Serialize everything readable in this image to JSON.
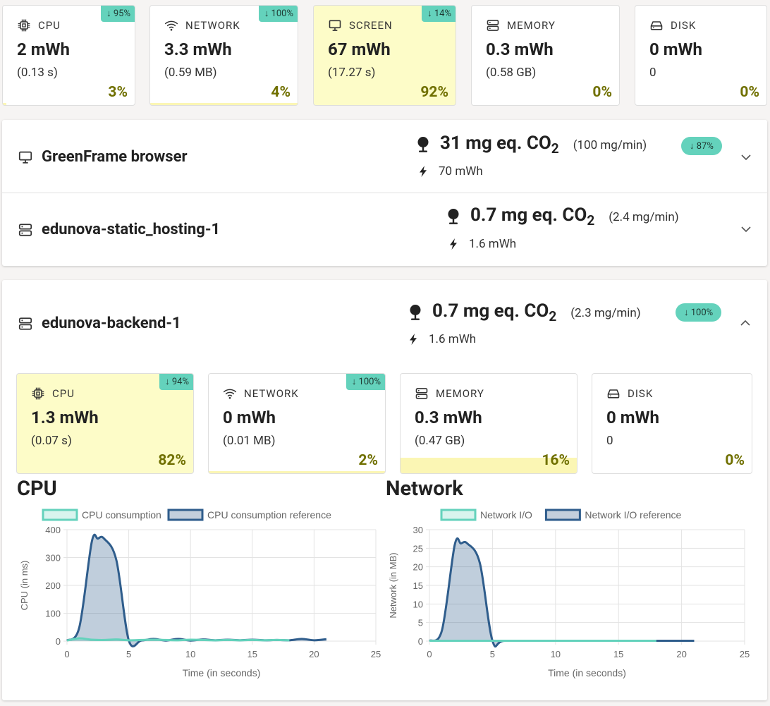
{
  "top_tiles": [
    {
      "icon": "cpu-icon",
      "name": "CPU",
      "value": "2 mWh",
      "sub": "(0.13 s)",
      "pct": "3%",
      "badge": "↓ 95%"
    },
    {
      "icon": "wifi-icon",
      "name": "NETWORK",
      "value": "3.3 mWh",
      "sub": "(0.59 MB)",
      "pct": "4%",
      "badge": "↓ 100%"
    },
    {
      "icon": "monitor-icon",
      "name": "SCREEN",
      "value": "67 mWh",
      "sub": "(17.27 s)",
      "pct": "92%",
      "badge": "↓ 14%"
    },
    {
      "icon": "memory-icon",
      "name": "MEMORY",
      "value": "0.3 mWh",
      "sub": "(0.58 GB)",
      "pct": "0%"
    },
    {
      "icon": "disk-icon",
      "name": "DISK",
      "value": "0 mWh",
      "sub": "0",
      "pct": "0%"
    }
  ],
  "containers": [
    {
      "name": "GreenFrame browser",
      "co2": "31 mg eq. CO",
      "co2_sub": "2",
      "rate": "(100 mg/min)",
      "energy": "70 mWh",
      "badge": "↓ 87%"
    },
    {
      "name": "edunova-static_hosting-1",
      "co2": "0.7 mg eq. CO",
      "co2_sub": "2",
      "rate": "(2.4 mg/min)",
      "energy": "1.6 mWh"
    },
    {
      "name": "edunova-backend-1",
      "co2": "0.7 mg eq. CO",
      "co2_sub": "2",
      "rate": "(2.3 mg/min)",
      "energy": "1.6 mWh",
      "badge": "↓ 100%"
    }
  ],
  "backend_tiles": [
    {
      "icon": "cpu-icon",
      "name": "CPU",
      "value": "1.3 mWh",
      "sub": "(0.07 s)",
      "pct": "82%",
      "badge": "↓ 94%"
    },
    {
      "icon": "wifi-icon",
      "name": "NETWORK",
      "value": "0 mWh",
      "sub": "(0.01 MB)",
      "pct": "2%",
      "badge": "↓ 100%"
    },
    {
      "icon": "memory-icon",
      "name": "MEMORY",
      "value": "0.3 mWh",
      "sub": "(0.47 GB)",
      "pct": "16%"
    },
    {
      "icon": "disk-icon",
      "name": "DISK",
      "value": "0 mWh",
      "sub": "0",
      "pct": "0%"
    }
  ],
  "colors": {
    "badge": "#64d2bc",
    "highlight": "#fdfcc8",
    "percent": "#707000",
    "series_current": "#64d2bc",
    "series_reference": "#2f5d8c"
  },
  "chart_data": [
    {
      "type": "area",
      "title": "CPU",
      "xlabel": "Time (in seconds)",
      "ylabel": "CPU (in ms)",
      "xlim": [
        0,
        25
      ],
      "ylim": [
        0,
        400
      ],
      "xticks": [
        "0",
        "5",
        "10",
        "15",
        "20",
        "25"
      ],
      "yticks": [
        "0",
        "100",
        "200",
        "300",
        "400"
      ],
      "grid": true,
      "legend": "top",
      "series": [
        {
          "name": "CPU consumption",
          "x": [
            0,
            1,
            2,
            3,
            4,
            5,
            6,
            7,
            8,
            9,
            10,
            11,
            12,
            13,
            14,
            15,
            16,
            17,
            18
          ],
          "values": [
            2,
            10,
            5,
            4,
            6,
            3,
            4,
            5,
            4,
            3,
            5,
            4,
            3,
            4,
            3,
            4,
            3,
            4,
            3
          ]
        },
        {
          "name": "CPU consumption reference",
          "x": [
            0,
            1,
            2,
            2.5,
            3,
            4,
            5,
            6,
            7,
            8,
            9,
            10,
            11,
            12,
            13,
            14,
            15,
            16,
            17,
            18,
            19,
            20,
            21
          ],
          "values": [
            2,
            50,
            355,
            368,
            368,
            290,
            3,
            2,
            8,
            2,
            8,
            2,
            6,
            3,
            5,
            3,
            5,
            3,
            4,
            3,
            8,
            3,
            7
          ]
        }
      ]
    },
    {
      "type": "area",
      "title": "Network",
      "xlabel": "Time (in seconds)",
      "ylabel": "Network (in MB)",
      "xlim": [
        0,
        25
      ],
      "ylim": [
        0,
        30
      ],
      "xticks": [
        "0",
        "5",
        "10",
        "15",
        "20",
        "25"
      ],
      "yticks": [
        "0",
        "5",
        "10",
        "15",
        "20",
        "25",
        "30"
      ],
      "grid": true,
      "legend": "top",
      "series": [
        {
          "name": "Network I/O",
          "x": [
            0,
            5,
            10,
            15,
            18
          ],
          "values": [
            0.1,
            0.1,
            0.1,
            0.1,
            0.1
          ]
        },
        {
          "name": "Network I/O reference",
          "x": [
            0,
            1,
            2,
            2.5,
            3,
            4,
            5,
            6,
            10,
            15,
            18,
            21
          ],
          "values": [
            0.1,
            3,
            25.8,
            26.3,
            26.3,
            21,
            0.1,
            0.1,
            0.1,
            0.1,
            0.1,
            0.1
          ]
        }
      ]
    }
  ]
}
